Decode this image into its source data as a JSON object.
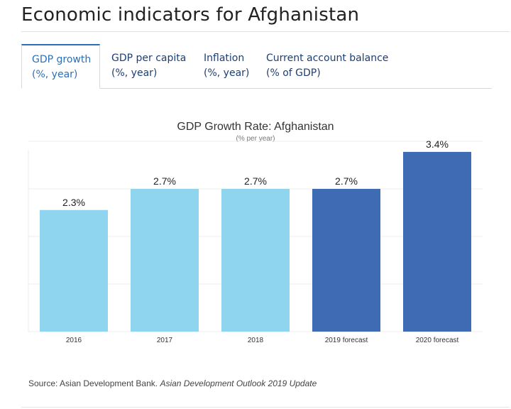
{
  "page": {
    "title": "Economic indicators for Afghanistan"
  },
  "tabs": [
    {
      "line1": "GDP growth",
      "line2": "(%, year)",
      "active": true
    },
    {
      "line1": "GDP per capita",
      "line2": "(%, year)",
      "active": false
    },
    {
      "line1": "Inflation",
      "line2": "(%, year)",
      "active": false
    },
    {
      "line1": "Current account balance",
      "line2": "(% of GDP)",
      "active": false
    }
  ],
  "chart_data": {
    "type": "bar",
    "title": "GDP Growth Rate: Afghanistan",
    "subtitle": "(% per year)",
    "categories": [
      "2016",
      "2017",
      "2018",
      "2019 forecast",
      "2020 forecast"
    ],
    "values": [
      2.3,
      2.7,
      2.7,
      2.7,
      3.4
    ],
    "data_labels": [
      "2.3%",
      "2.7%",
      "2.7%",
      "2.7%",
      "3.4%"
    ],
    "colors": [
      "#90d5f0",
      "#90d5f0",
      "#90d5f0",
      "#3f6bb5",
      "#3f6bb5"
    ],
    "ylim": [
      0,
      3.6
    ],
    "grid": true,
    "xlabel": "",
    "ylabel": ""
  },
  "source": {
    "prefix": "Source: Asian Development Bank.",
    "publication": "Asian Development Outlook 2019 Update"
  }
}
